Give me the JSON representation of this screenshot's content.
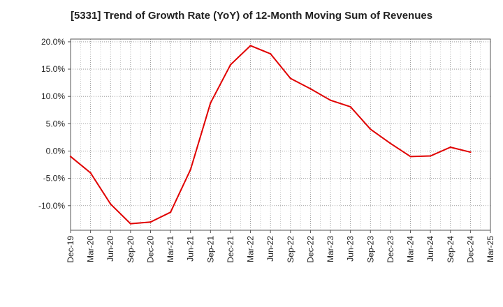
{
  "chart_data": {
    "type": "line",
    "title": "[5331]  Trend of Growth Rate (YoY) of 12-Month Moving Sum of Revenues",
    "xlabel": "",
    "ylabel": "",
    "x_tick_labels": [
      "Dec-19",
      "Mar-20",
      "Jun-20",
      "Sep-20",
      "Dec-20",
      "Mar-21",
      "Jun-21",
      "Sep-21",
      "Dec-21",
      "Mar-22",
      "Jun-22",
      "Sep-22",
      "Dec-22",
      "Mar-23",
      "Jun-23",
      "Sep-23",
      "Dec-23",
      "Mar-24",
      "Jun-24",
      "Sep-24",
      "Dec-24",
      "Mar-25"
    ],
    "y_tick_labels": [
      "20.0%",
      "15.0%",
      "10.0%",
      "5.0%",
      "0.0%",
      "-5.0%",
      "-10.0%"
    ],
    "y_ticks": [
      20,
      15,
      10,
      5,
      0,
      -5,
      -10
    ],
    "ylim": [
      -14.5,
      20.5
    ],
    "grid": true,
    "series": [
      {
        "color": "#e00000",
        "points": [
          {
            "x": "Dec-19",
            "y": -1.0
          },
          {
            "x": "Mar-20",
            "y": -4.0
          },
          {
            "x": "Jun-20",
            "y": -9.7
          },
          {
            "x": "Sep-20",
            "y": -13.3
          },
          {
            "x": "Dec-20",
            "y": -13.0
          },
          {
            "x": "Mar-21",
            "y": -11.2
          },
          {
            "x": "Jun-21",
            "y": -3.4
          },
          {
            "x": "Sep-21",
            "y": 8.8
          },
          {
            "x": "Dec-21",
            "y": 15.8
          },
          {
            "x": "Mar-22",
            "y": 19.3
          },
          {
            "x": "Jun-22",
            "y": 17.8
          },
          {
            "x": "Sep-22",
            "y": 13.3
          },
          {
            "x": "Dec-22",
            "y": 11.4
          },
          {
            "x": "Mar-23",
            "y": 9.3
          },
          {
            "x": "Jun-23",
            "y": 8.1
          },
          {
            "x": "Sep-23",
            "y": 4.0
          },
          {
            "x": "Dec-23",
            "y": 1.4
          },
          {
            "x": "Mar-24",
            "y": -1.0
          },
          {
            "x": "Jun-24",
            "y": -0.9
          },
          {
            "x": "Sep-24",
            "y": 0.7
          },
          {
            "x": "Dec-24",
            "y": -0.2
          }
        ]
      }
    ]
  }
}
